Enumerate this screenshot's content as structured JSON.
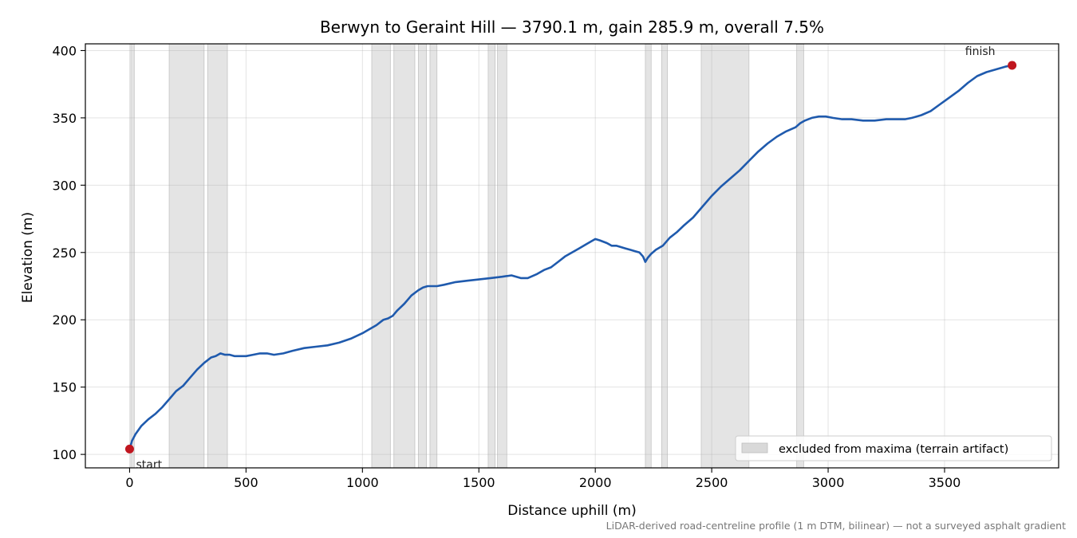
{
  "chart_data": {
    "type": "line",
    "title": "Berwyn to Geraint Hill — 3790.1 m, gain 285.9 m, overall 7.5%",
    "xlabel": "Distance uphill (m)",
    "ylabel": "Elevation (m)",
    "xlim": [
      -190,
      3990
    ],
    "ylim": [
      90,
      405
    ],
    "xticks": [
      0,
      500,
      1000,
      1500,
      2000,
      2500,
      3000,
      3500
    ],
    "yticks": [
      100,
      150,
      200,
      250,
      300,
      350,
      400
    ],
    "grid": true,
    "legend_position": "lower-right",
    "line_color": "#1f5aad",
    "marker_color": "#c0161f",
    "band_color": "#d9d9d9",
    "series": [
      {
        "x": [
          0,
          10,
          25,
          50,
          80,
          110,
          140,
          170,
          200,
          230,
          260,
          290,
          320,
          350,
          370,
          390,
          410,
          430,
          450,
          470,
          500,
          530,
          560,
          590,
          620,
          660,
          700,
          750,
          800,
          850,
          900,
          950,
          1000,
          1030,
          1060,
          1090,
          1110,
          1130,
          1150,
          1180,
          1210,
          1240,
          1260,
          1280,
          1300,
          1320,
          1350,
          1400,
          1450,
          1500,
          1550,
          1600,
          1640,
          1680,
          1710,
          1750,
          1780,
          1810,
          1840,
          1870,
          1900,
          1930,
          1960,
          1980,
          2000,
          2020,
          2050,
          2070,
          2090,
          2110,
          2130,
          2150,
          2170,
          2190,
          2205,
          2215,
          2225,
          2240,
          2260,
          2290,
          2320,
          2350,
          2380,
          2420,
          2460,
          2500,
          2540,
          2580,
          2620,
          2660,
          2700,
          2740,
          2780,
          2820,
          2860,
          2880,
          2900,
          2930,
          2960,
          2990,
          3020,
          3060,
          3100,
          3150,
          3200,
          3250,
          3300,
          3330,
          3360,
          3400,
          3440,
          3480,
          3520,
          3560,
          3600,
          3640,
          3680,
          3720,
          3760,
          3790
        ],
        "y": [
          104,
          110,
          115,
          121,
          126,
          130,
          135,
          141,
          147,
          151,
          157,
          163,
          168,
          172,
          173,
          175,
          174,
          174,
          173,
          173,
          173,
          174,
          175,
          175,
          174,
          175,
          177,
          179,
          180,
          181,
          183,
          186,
          190,
          193,
          196,
          200,
          201,
          203,
          207,
          212,
          218,
          222,
          224,
          225,
          225,
          225,
          226,
          228,
          229,
          230,
          231,
          232,
          233,
          231,
          231,
          234,
          237,
          239,
          243,
          247,
          250,
          253,
          256,
          258,
          260,
          259,
          257,
          255,
          255,
          254,
          253,
          252,
          251,
          250,
          247,
          243,
          246,
          249,
          252,
          255,
          261,
          265,
          270,
          276,
          284,
          292,
          299,
          305,
          311,
          318,
          325,
          331,
          336,
          340,
          343,
          346,
          348,
          350,
          351,
          351,
          350,
          349,
          349,
          348,
          348,
          349,
          349,
          349,
          350,
          352,
          355,
          360,
          365,
          370,
          376,
          381,
          384,
          386,
          388,
          389
        ]
      }
    ],
    "excluded_bands": [
      [
        5,
        20
      ],
      [
        170,
        320
      ],
      [
        335,
        420
      ],
      [
        1040,
        1120
      ],
      [
        1135,
        1225
      ],
      [
        1240,
        1275
      ],
      [
        1290,
        1320
      ],
      [
        1540,
        1570
      ],
      [
        1580,
        1620
      ],
      [
        2215,
        2240
      ],
      [
        2285,
        2310
      ],
      [
        2455,
        2660
      ],
      [
        2865,
        2895
      ]
    ],
    "markers": [
      {
        "label": "start",
        "x": 0,
        "y": 104
      },
      {
        "label": "finish",
        "x": 3790,
        "y": 389
      }
    ],
    "legend": [
      "excluded from maxima (terrain artifact)"
    ],
    "footnote": "LiDAR-derived road-centreline profile (1 m DTM, bilinear) — not a surveyed asphalt gradient"
  }
}
